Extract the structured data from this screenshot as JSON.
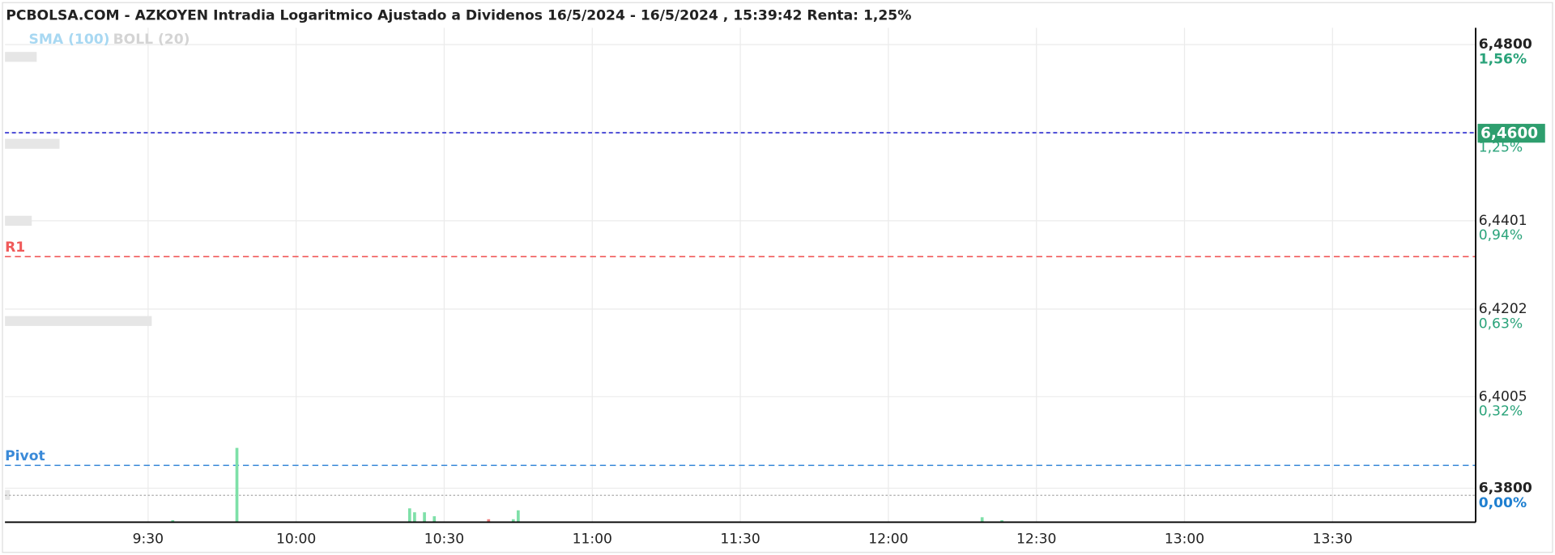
{
  "chart_data": {
    "type": "volume-intraday",
    "title": "PCBOLSA.COM - AZKOYEN Intradia Logaritmico Ajustado a Dividenos 16/5/2024 - 16/5/2024 , 15:39:42 Renta: 1,25%",
    "indicators": [
      {
        "name": "SMA (100)",
        "color": "#a8d8f2"
      },
      {
        "name": "BOLL (20)",
        "color": "#d4d4d4"
      }
    ],
    "log_scale": true,
    "grid": true,
    "ylim": [
      6.3724,
      6.4838
    ],
    "yticks": [
      {
        "value": 6.48,
        "label": "6,4800"
      },
      {
        "value": 6.46,
        "label": "6,4600"
      },
      {
        "value": 6.4401,
        "label": "6,4401"
      },
      {
        "value": 6.4202,
        "label": "6,4202"
      },
      {
        "value": 6.4005,
        "label": "6,4005"
      },
      {
        "value": 6.38,
        "label": "6,3800"
      }
    ],
    "ytick_pct_labels": [
      "1,56%",
      "1,25%",
      "0,94%",
      "0,63%",
      "0,32%",
      "0,00%"
    ],
    "pct_color": "#2aa37a",
    "zero_pct_color": "#1e7fd0",
    "xlim": [
      "9:01",
      "13:59"
    ],
    "xticks": [
      "9:30",
      "10:00",
      "10:30",
      "11:00",
      "11:30",
      "12:00",
      "12:30",
      "13:00",
      "13:30"
    ],
    "current_price": {
      "value": 6.46,
      "label": "6,4600",
      "color": "#2e9e6e",
      "line_color": "#2a2ad0"
    },
    "reference_lines": [
      {
        "label": "R1",
        "value": 6.432,
        "color": "#f05a5a"
      },
      {
        "label": "Pivot",
        "value": 6.3851,
        "color": "#3a8ad8"
      }
    ],
    "previous_close": {
      "value": 6.3784,
      "color": "#aaaaaa"
    },
    "volume_profile": {
      "prices": [
        6.4772,
        6.4575,
        6.4401,
        6.4175,
        6.3785
      ],
      "values": [
        32,
        55,
        27,
        148,
        5
      ],
      "color": "#e6e6e6"
    },
    "volume": {
      "x": [
        "9:35",
        "9:48",
        "10:23",
        "10:24",
        "10:26",
        "10:28",
        "10:39",
        "10:44",
        "10:45",
        "12:19",
        "12:23"
      ],
      "values": [
        2,
        75,
        14,
        10,
        10,
        6,
        3,
        3,
        12,
        5,
        2
      ],
      "colors": [
        "#7ee0a8",
        "#7ee0a8",
        "#7ee0a8",
        "#7ee0a8",
        "#7ee0a8",
        "#7ee0a8",
        "#f08080",
        "#7ee0a8",
        "#7ee0a8",
        "#7ee0a8",
        "#7ee0a8"
      ]
    }
  }
}
